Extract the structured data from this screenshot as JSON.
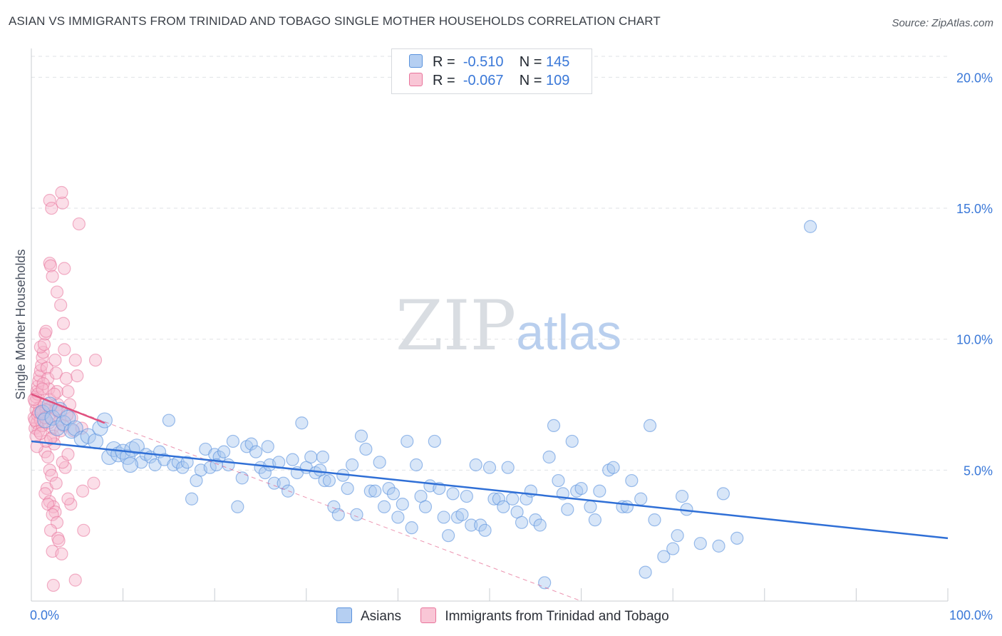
{
  "header": {
    "title": "ASIAN VS IMMIGRANTS FROM TRINIDAD AND TOBAGO SINGLE MOTHER HOUSEHOLDS CORRELATION CHART",
    "source": "Source: ZipAtlas.com"
  },
  "watermark": {
    "part1": "ZIP",
    "part2": "atlas"
  },
  "legend": {
    "rows": [
      {
        "r_label": "R =",
        "r_value": "-0.510",
        "n_label": "N =",
        "n_value": "145"
      },
      {
        "r_label": "R =",
        "r_value": "-0.067",
        "n_label": "N =",
        "n_value": "109"
      }
    ]
  },
  "bottom_legend": {
    "series1": "Asians",
    "series2": "Immigrants from Trinidad and Tobago"
  },
  "colors": {
    "asian_fill": "#a9c8f0",
    "asian_stroke": "#5b93dd",
    "asian_line": "#2f6fd6",
    "trinidad_fill": "#f7b6cb",
    "trinidad_stroke": "#e8739b",
    "trinidad_line": "#e0507f",
    "tick_blue": "#3a78d8",
    "grid": "#dfe2e6"
  },
  "chart_data": {
    "type": "scatter",
    "title": "ASIAN VS IMMIGRANTS FROM TRINIDAD AND TOBAGO SINGLE MOTHER HOUSEHOLDS CORRELATION CHART",
    "xlabel": "",
    "ylabel": "Single Mother Households",
    "xlim": [
      0,
      100
    ],
    "ylim": [
      0,
      20.8
    ],
    "x_ticks": [
      "0.0%",
      "100.0%"
    ],
    "y_ticks": [
      {
        "value": 5,
        "label": "5.0%"
      },
      {
        "value": 10,
        "label": "10.0%"
      },
      {
        "value": 15,
        "label": "15.0%"
      },
      {
        "value": 20,
        "label": "20.0%"
      }
    ],
    "grid": true,
    "legend_position": "top-center",
    "series": [
      {
        "name": "Asians",
        "r": -0.51,
        "n": 145,
        "trend": {
          "x": [
            0,
            100
          ],
          "y": [
            6.1,
            2.4
          ],
          "style": "solid"
        },
        "points": [
          [
            1.2,
            7.2
          ],
          [
            1.5,
            6.9
          ],
          [
            2.0,
            7.5
          ],
          [
            2.3,
            7.0
          ],
          [
            2.8,
            6.6
          ],
          [
            3.1,
            7.3
          ],
          [
            3.5,
            6.8
          ],
          [
            4.0,
            7.0
          ],
          [
            4.4,
            6.5
          ],
          [
            4.8,
            6.6
          ],
          [
            5.5,
            6.2
          ],
          [
            6.2,
            6.3
          ],
          [
            7.0,
            6.1
          ],
          [
            7.5,
            6.6
          ],
          [
            8.0,
            6.9
          ],
          [
            8.5,
            5.5
          ],
          [
            9.0,
            5.8
          ],
          [
            9.5,
            5.6
          ],
          [
            10.0,
            5.7
          ],
          [
            10.5,
            5.5
          ],
          [
            11.0,
            5.8
          ],
          [
            11.5,
            5.9
          ],
          [
            12.0,
            5.3
          ],
          [
            12.5,
            5.6
          ],
          [
            13.0,
            5.5
          ],
          [
            13.5,
            5.2
          ],
          [
            14.0,
            5.7
          ],
          [
            14.5,
            5.4
          ],
          [
            15.0,
            6.9
          ],
          [
            15.5,
            5.2
          ],
          [
            16.0,
            5.3
          ],
          [
            16.5,
            5.1
          ],
          [
            17.0,
            5.3
          ],
          [
            17.5,
            3.9
          ],
          [
            18.0,
            4.6
          ],
          [
            18.5,
            5.0
          ],
          [
            19.0,
            5.8
          ],
          [
            19.5,
            5.1
          ],
          [
            20.0,
            5.6
          ],
          [
            20.5,
            5.5
          ],
          [
            21.0,
            5.7
          ],
          [
            21.5,
            5.2
          ],
          [
            22.0,
            6.1
          ],
          [
            22.5,
            3.6
          ],
          [
            23.0,
            4.7
          ],
          [
            23.5,
            5.9
          ],
          [
            24.0,
            6.0
          ],
          [
            24.5,
            5.7
          ],
          [
            25.0,
            5.1
          ],
          [
            25.5,
            4.9
          ],
          [
            26.0,
            5.2
          ],
          [
            26.5,
            4.5
          ],
          [
            27.0,
            5.3
          ],
          [
            27.5,
            4.5
          ],
          [
            28.0,
            4.2
          ],
          [
            28.5,
            5.4
          ],
          [
            29.0,
            4.9
          ],
          [
            29.5,
            6.8
          ],
          [
            30.0,
            5.1
          ],
          [
            30.5,
            5.5
          ],
          [
            31.0,
            4.9
          ],
          [
            31.5,
            5.0
          ],
          [
            32.0,
            4.6
          ],
          [
            32.5,
            4.6
          ],
          [
            33.0,
            3.6
          ],
          [
            33.5,
            3.3
          ],
          [
            34.0,
            4.8
          ],
          [
            34.5,
            4.3
          ],
          [
            35.0,
            5.2
          ],
          [
            35.5,
            3.3
          ],
          [
            36.0,
            6.3
          ],
          [
            36.5,
            5.8
          ],
          [
            37.0,
            4.2
          ],
          [
            37.5,
            4.2
          ],
          [
            38.0,
            5.3
          ],
          [
            38.5,
            3.6
          ],
          [
            39.0,
            4.3
          ],
          [
            39.5,
            4.1
          ],
          [
            40.0,
            3.2
          ],
          [
            40.5,
            3.7
          ],
          [
            41.0,
            6.1
          ],
          [
            41.5,
            2.8
          ],
          [
            42.0,
            5.2
          ],
          [
            42.5,
            4.0
          ],
          [
            43.0,
            3.6
          ],
          [
            43.5,
            4.4
          ],
          [
            44.0,
            6.1
          ],
          [
            44.5,
            4.3
          ],
          [
            45.0,
            3.2
          ],
          [
            45.5,
            2.5
          ],
          [
            46.0,
            4.1
          ],
          [
            46.5,
            3.2
          ],
          [
            47.0,
            3.3
          ],
          [
            47.5,
            4.0
          ],
          [
            48.0,
            2.9
          ],
          [
            48.5,
            5.2
          ],
          [
            49.0,
            2.9
          ],
          [
            49.5,
            2.7
          ],
          [
            50.0,
            5.1
          ],
          [
            50.5,
            3.9
          ],
          [
            51.0,
            3.9
          ],
          [
            51.5,
            3.6
          ],
          [
            52.0,
            5.1
          ],
          [
            52.5,
            3.9
          ],
          [
            53.0,
            3.4
          ],
          [
            53.5,
            3.0
          ],
          [
            54.0,
            3.9
          ],
          [
            54.5,
            4.2
          ],
          [
            55.0,
            3.1
          ],
          [
            55.5,
            2.9
          ],
          [
            56.5,
            5.5
          ],
          [
            57.0,
            6.7
          ],
          [
            57.5,
            4.6
          ],
          [
            58.0,
            4.1
          ],
          [
            58.5,
            3.5
          ],
          [
            59.0,
            6.1
          ],
          [
            59.5,
            4.2
          ],
          [
            60.0,
            4.3
          ],
          [
            61.0,
            3.6
          ],
          [
            61.5,
            3.1
          ],
          [
            62.0,
            4.2
          ],
          [
            63.0,
            5.0
          ],
          [
            63.5,
            5.1
          ],
          [
            64.5,
            3.6
          ],
          [
            65.0,
            3.6
          ],
          [
            65.5,
            4.6
          ],
          [
            66.5,
            3.9
          ],
          [
            67.0,
            1.1
          ],
          [
            67.5,
            6.7
          ],
          [
            68.0,
            3.1
          ],
          [
            69.0,
            1.7
          ],
          [
            70.0,
            2.0
          ],
          [
            70.5,
            2.5
          ],
          [
            71.0,
            4.0
          ],
          [
            71.5,
            3.5
          ],
          [
            73.0,
            2.2
          ],
          [
            75.0,
            2.1
          ],
          [
            77.0,
            2.4
          ],
          [
            75.5,
            4.1
          ],
          [
            85.0,
            14.3
          ],
          [
            56.0,
            0.7
          ],
          [
            20.2,
            5.2
          ],
          [
            25.8,
            5.9
          ],
          [
            31.8,
            5.5
          ],
          [
            10.8,
            5.2
          ]
        ]
      },
      {
        "name": "Immigrants from Trinidad and Tobago",
        "r": -0.067,
        "n": 109,
        "trend": {
          "x": [
            0,
            8
          ],
          "y": [
            7.9,
            6.8
          ],
          "style": "solid"
        },
        "trend_extended": {
          "x": [
            0,
            60
          ],
          "y": [
            7.9,
            0.0
          ],
          "style": "dashed"
        },
        "points": [
          [
            0.3,
            7.0
          ],
          [
            0.4,
            6.6
          ],
          [
            0.5,
            7.3
          ],
          [
            0.6,
            6.8
          ],
          [
            0.7,
            7.1
          ],
          [
            0.8,
            6.5
          ],
          [
            0.9,
            7.4
          ],
          [
            1.0,
            6.9
          ],
          [
            1.1,
            7.2
          ],
          [
            1.2,
            6.7
          ],
          [
            0.4,
            7.6
          ],
          [
            0.5,
            7.8
          ],
          [
            0.6,
            8.0
          ],
          [
            0.7,
            8.2
          ],
          [
            0.8,
            8.4
          ],
          [
            0.9,
            8.6
          ],
          [
            1.0,
            8.8
          ],
          [
            1.1,
            9.0
          ],
          [
            1.2,
            9.3
          ],
          [
            1.3,
            9.5
          ],
          [
            1.0,
            9.7
          ],
          [
            1.4,
            9.8
          ],
          [
            1.5,
            10.2
          ],
          [
            1.6,
            10.3
          ],
          [
            1.7,
            8.9
          ],
          [
            1.8,
            8.5
          ],
          [
            1.9,
            8.1
          ],
          [
            2.0,
            7.7
          ],
          [
            2.1,
            7.4
          ],
          [
            2.2,
            7.0
          ],
          [
            2.3,
            6.6
          ],
          [
            2.4,
            6.3
          ],
          [
            2.5,
            6.0
          ],
          [
            2.6,
            9.2
          ],
          [
            2.7,
            8.7
          ],
          [
            2.8,
            8.0
          ],
          [
            2.9,
            7.5
          ],
          [
            3.0,
            7.2
          ],
          [
            3.1,
            6.9
          ],
          [
            3.2,
            6.5
          ],
          [
            2.0,
            12.9
          ],
          [
            2.1,
            12.8
          ],
          [
            2.3,
            12.4
          ],
          [
            2.8,
            11.8
          ],
          [
            3.2,
            11.3
          ],
          [
            3.6,
            12.7
          ],
          [
            3.4,
            15.2
          ],
          [
            2.0,
            15.3
          ],
          [
            2.2,
            15.0
          ],
          [
            3.3,
            15.6
          ],
          [
            5.2,
            14.4
          ],
          [
            3.5,
            10.6
          ],
          [
            3.6,
            9.6
          ],
          [
            3.8,
            8.5
          ],
          [
            4.0,
            8.0
          ],
          [
            4.2,
            7.5
          ],
          [
            4.4,
            7.0
          ],
          [
            4.6,
            6.5
          ],
          [
            4.8,
            9.2
          ],
          [
            5.0,
            8.6
          ],
          [
            1.5,
            5.7
          ],
          [
            1.6,
            6.1
          ],
          [
            1.8,
            5.5
          ],
          [
            2.0,
            5.0
          ],
          [
            2.2,
            4.8
          ],
          [
            1.7,
            4.3
          ],
          [
            1.5,
            4.1
          ],
          [
            2.0,
            3.8
          ],
          [
            2.4,
            3.6
          ],
          [
            1.8,
            3.7
          ],
          [
            2.6,
            3.4
          ],
          [
            2.3,
            3.3
          ],
          [
            2.8,
            3.0
          ],
          [
            2.1,
            2.7
          ],
          [
            2.9,
            2.4
          ],
          [
            3.0,
            2.3
          ],
          [
            2.3,
            1.9
          ],
          [
            3.3,
            1.8
          ],
          [
            2.4,
            0.6
          ],
          [
            4.8,
            0.8
          ],
          [
            5.6,
            4.2
          ],
          [
            5.7,
            2.7
          ],
          [
            6.8,
            4.5
          ],
          [
            7.0,
            9.2
          ],
          [
            3.7,
            5.1
          ],
          [
            3.4,
            5.3
          ],
          [
            4.0,
            5.6
          ],
          [
            4.3,
            3.7
          ],
          [
            4.0,
            3.9
          ],
          [
            2.7,
            4.5
          ],
          [
            0.5,
            6.3
          ],
          [
            0.6,
            5.9
          ],
          [
            0.7,
            7.9
          ],
          [
            1.3,
            8.3
          ],
          [
            1.4,
            7.5
          ],
          [
            1.6,
            7.3
          ],
          [
            1.9,
            6.8
          ],
          [
            2.1,
            6.2
          ],
          [
            2.5,
            7.9
          ],
          [
            0.3,
            7.7
          ],
          [
            0.4,
            6.9
          ],
          [
            0.8,
            7.2
          ],
          [
            1.0,
            6.4
          ],
          [
            1.2,
            8.1
          ],
          [
            1.5,
            7.0
          ],
          [
            2.7,
            7.3
          ],
          [
            3.5,
            6.7
          ],
          [
            3.9,
            7.1
          ],
          [
            5.5,
            6.6
          ]
        ]
      }
    ]
  }
}
